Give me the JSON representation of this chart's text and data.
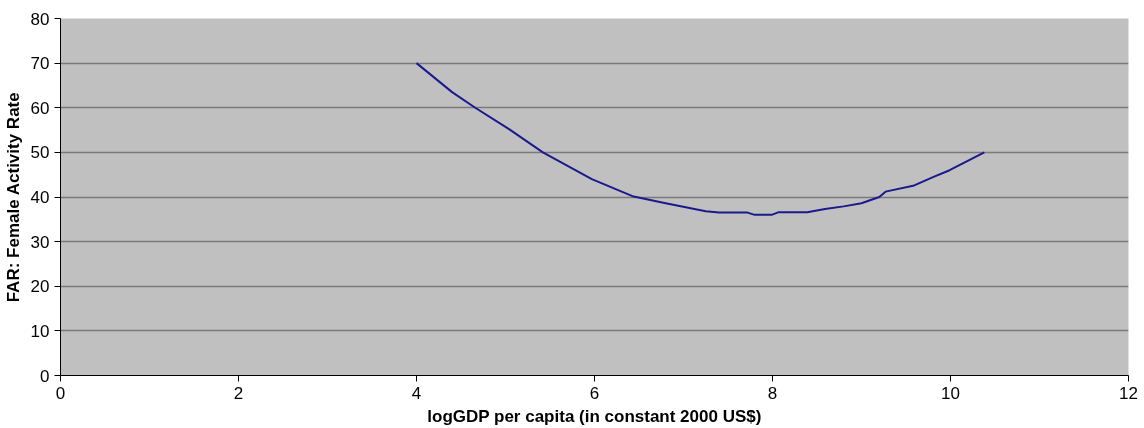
{
  "chart_data": {
    "type": "line",
    "xlabel": "logGDP per capita (in constant 2000 US$)",
    "ylabel": "FAR: Female Activity Rate",
    "x": [
      4,
      4.4,
      4.66,
      5.04,
      5.42,
      5.97,
      6.44,
      6.8,
      7.25,
      7.4,
      7.72,
      7.8,
      7.99,
      8.07,
      8.39,
      8.59,
      8.8,
      9.0,
      9.2,
      9.27,
      9.58,
      9.81,
      9.99,
      10.38
    ],
    "series": [
      {
        "color": "#1a1a8c",
        "values": [
          70,
          63.5,
          60,
          55.2,
          50,
          44,
          40.1,
          38.6,
          36.8,
          36.5,
          36.5,
          36,
          36,
          36.6,
          36.6,
          37.3,
          37.9,
          38.6,
          40,
          41.2,
          42.5,
          44.5,
          46,
          50
        ]
      }
    ],
    "xlim": [
      0,
      12
    ],
    "xticks": [
      0,
      2,
      4,
      6,
      8,
      10,
      12
    ],
    "ylim": [
      0,
      80
    ],
    "yticks": [
      0,
      10,
      20,
      30,
      40,
      50,
      60,
      70,
      80
    ],
    "grid": "y",
    "marker": "none",
    "line_style": "solid"
  }
}
